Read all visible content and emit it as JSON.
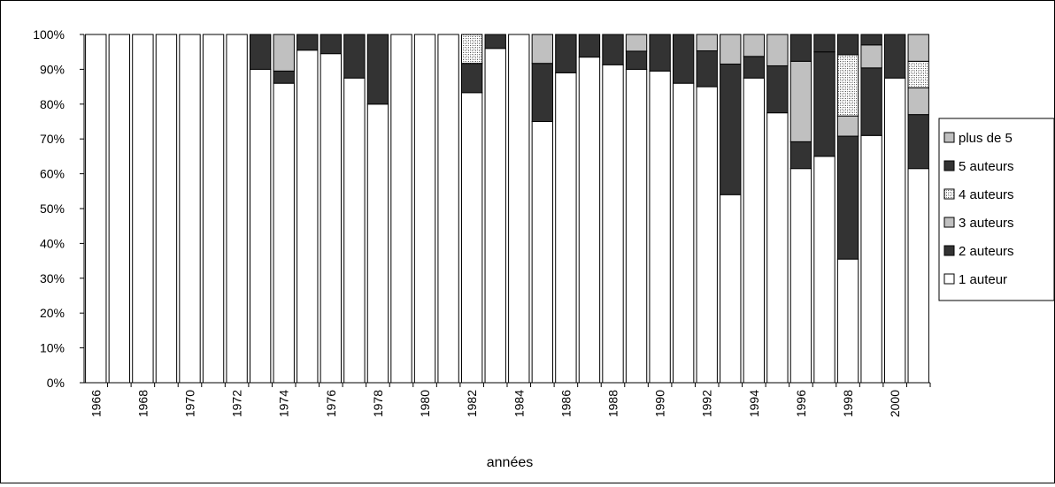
{
  "chart_data": {
    "type": "bar",
    "stacked": true,
    "percent": true,
    "xlabel": "années",
    "ylabel": "",
    "ylim": [
      0,
      100
    ],
    "yticks": [
      "0%",
      "10%",
      "20%",
      "30%",
      "40%",
      "50%",
      "60%",
      "70%",
      "80%",
      "90%",
      "100%"
    ],
    "grid": false,
    "legend_position": "right",
    "categories": [
      "1966",
      "1967",
      "1968",
      "1969",
      "1970",
      "1971",
      "1972",
      "1973",
      "1974",
      "1975",
      "1976",
      "1977",
      "1978",
      "1979",
      "1980",
      "1981",
      "1982",
      "1983",
      "1984",
      "1985",
      "1986",
      "1987",
      "1988",
      "1989",
      "1990",
      "1991",
      "1992",
      "1993",
      "1994",
      "1995",
      "1996",
      "1997",
      "1998",
      "1999",
      "2000",
      "2001"
    ],
    "tick_labels": [
      "1966",
      "",
      "1968",
      "",
      "1970",
      "",
      "1972",
      "",
      "1974",
      "",
      "1976",
      "",
      "1978",
      "",
      "1980",
      "",
      "1982",
      "",
      "1984",
      "",
      "1986",
      "",
      "1988",
      "",
      "1990",
      "",
      "1992",
      "",
      "1994",
      "",
      "1996",
      "",
      "1998",
      "",
      "2000",
      ""
    ],
    "series": [
      {
        "name": "1 auteur",
        "color": "#ffffff",
        "pattern": "none",
        "values": [
          100,
          100,
          100,
          100,
          100,
          100,
          100,
          90,
          86,
          95.5,
          94.5,
          87.5,
          80,
          100,
          100,
          100,
          83.3,
          96,
          100,
          75,
          89,
          93.5,
          91.3,
          90,
          89.5,
          86,
          85,
          54,
          87.5,
          77.5,
          61.5,
          65,
          35.5,
          71,
          87.5,
          61.5
        ]
      },
      {
        "name": "2 auteurs",
        "color": "#333333",
        "pattern": "none",
        "values": [
          0,
          0,
          0,
          0,
          0,
          0,
          0,
          10,
          3.5,
          4.5,
          5.5,
          12.5,
          20,
          0,
          0,
          0,
          8.4,
          4,
          0,
          16.7,
          11,
          6.5,
          8.7,
          5.2,
          10.5,
          14,
          10.3,
          37.5,
          6.2,
          13.5,
          7.7,
          30,
          35.3,
          19.4,
          12.5,
          15.5
        ]
      },
      {
        "name": "3 auteurs",
        "color": "#c0c0c0",
        "pattern": "none",
        "values": [
          0,
          0,
          0,
          0,
          0,
          0,
          0,
          0,
          10.5,
          0,
          0,
          0,
          0,
          0,
          0,
          0,
          0,
          0,
          0,
          8.3,
          0,
          0,
          0,
          4.8,
          0,
          0,
          4.7,
          8.5,
          6.3,
          9,
          23.1,
          0,
          5.8,
          6.6,
          0,
          7.7
        ]
      },
      {
        "name": "4 auteurs",
        "color": "#e6e6e6",
        "pattern": "dots",
        "values": [
          0,
          0,
          0,
          0,
          0,
          0,
          0,
          0,
          0,
          0,
          0,
          0,
          0,
          0,
          0,
          0,
          8.3,
          0,
          0,
          0,
          0,
          0,
          0,
          0,
          0,
          0,
          0,
          0,
          0,
          0,
          0,
          0,
          17.6,
          0,
          0,
          7.6
        ]
      },
      {
        "name": "5 auteurs",
        "color": "#333333",
        "pattern": "none",
        "values": [
          0,
          0,
          0,
          0,
          0,
          0,
          0,
          0,
          0,
          0,
          0,
          0,
          0,
          0,
          0,
          0,
          0,
          0,
          0,
          0,
          0,
          0,
          0,
          0,
          0,
          0,
          0,
          0,
          0,
          0,
          7.7,
          5,
          5.8,
          3,
          0,
          0
        ]
      },
      {
        "name": "plus de 5",
        "color": "#c0c0c0",
        "pattern": "none",
        "values": [
          0,
          0,
          0,
          0,
          0,
          0,
          0,
          0,
          0,
          0,
          0,
          0,
          0,
          0,
          0,
          0,
          0,
          0,
          0,
          0,
          0,
          0,
          0,
          0,
          0,
          0,
          0,
          0,
          0,
          0,
          0,
          0,
          0,
          0,
          0,
          7.7
        ]
      }
    ]
  }
}
